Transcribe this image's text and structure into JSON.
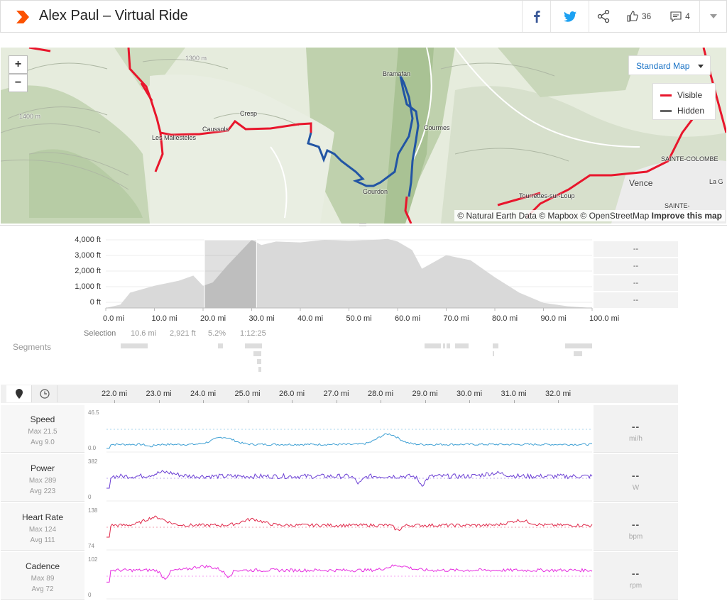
{
  "header": {
    "title": "Alex Paul – Virtual Ride",
    "kudos_count": "36",
    "comments_count": "4",
    "icons": [
      "strava-logo-icon",
      "facebook-icon",
      "twitter-icon",
      "share-icon",
      "thumbs-up-icon",
      "comment-icon",
      "chevron-down-icon"
    ]
  },
  "map": {
    "zoom_in": "+",
    "zoom_out": "−",
    "map_type": "Standard Map",
    "legend": [
      {
        "label": "Visible",
        "color": "#e8162c"
      },
      {
        "label": "Hidden",
        "color": "#666666"
      }
    ],
    "attribution": "© Natural Earth Data © Mapbox © OpenStreetMap",
    "improve": "Improve this map",
    "places": [
      "Bramafan",
      "Cresp",
      "Caussols",
      "Les Mallesteles",
      "Courmes",
      "Gourdon",
      "Tourrettes-sur-Loup",
      "Vence",
      "SAINTE-COLOMBE",
      "SAINTE-",
      "La G",
      "1300 m",
      "1400 m"
    ],
    "route_colors": {
      "visible": "#e8162c",
      "selected": "#2255a4"
    }
  },
  "elevation": {
    "y_ticks": [
      "4,000 ft",
      "3,000 ft",
      "2,000 ft",
      "1,000 ft",
      "0 ft"
    ],
    "x_ticks": [
      "0.0 mi",
      "10.0 mi",
      "20.0 mi",
      "30.0 mi",
      "40.0 mi",
      "50.0 mi",
      "60.0 mi",
      "70.0 mi",
      "80.0 mi",
      "90.0 mi",
      "100.0 mi"
    ],
    "side_values": [
      "--",
      "--",
      "--",
      "--"
    ],
    "selection": {
      "label": "Selection",
      "distance": "10.6 mi",
      "elev_gain": "2,921 ft",
      "grade": "5.2%",
      "time": "1:12:25"
    },
    "segments_label": "Segments"
  },
  "streams": {
    "x_ticks": [
      "22.0 mi",
      "23.0 mi",
      "24.0 mi",
      "25.0 mi",
      "26.0 mi",
      "27.0 mi",
      "28.0 mi",
      "29.0 mi",
      "30.0 mi",
      "31.0 mi",
      "32.0 mi"
    ],
    "rows": [
      {
        "name": "Speed",
        "max": "Max 21.5",
        "avg": "Avg 9.0",
        "ymax": "46.5",
        "ymin": "0.0",
        "value": "--",
        "unit": "mi/h",
        "color": "#3fa0d4"
      },
      {
        "name": "Power",
        "max": "Max 289",
        "avg": "Avg 223",
        "ymax": "382",
        "ymin": "0",
        "value": "--",
        "unit": "W",
        "color": "#6b3fd4"
      },
      {
        "name": "Heart Rate",
        "max": "Max 124",
        "avg": "Avg 111",
        "ymax": "138",
        "ymin": "74",
        "value": "--",
        "unit": "bpm",
        "color": "#e0294a"
      },
      {
        "name": "Cadence",
        "max": "Max 89",
        "avg": "Avg 72",
        "ymax": "102",
        "ymin": "0",
        "value": "--",
        "unit": "rpm",
        "color": "#e62ee0"
      }
    ]
  },
  "chart_data": {
    "type": "area",
    "xlabel": "",
    "ylabel": "",
    "x": [
      0,
      3,
      5,
      10,
      15,
      18,
      20,
      22,
      25,
      28,
      30,
      32,
      35,
      40,
      45,
      50,
      55,
      58,
      60,
      63,
      65,
      70,
      75,
      80,
      85,
      90,
      95,
      100
    ],
    "y": [
      0,
      200,
      900,
      1300,
      1600,
      1900,
      1300,
      1500,
      2500,
      3400,
      4000,
      3700,
      3900,
      3850,
      4000,
      3950,
      4000,
      4050,
      3900,
      3400,
      2300,
      3100,
      2800,
      1800,
      900,
      300,
      100,
      0
    ],
    "xlim": [
      0,
      100
    ],
    "ylim": [
      0,
      4000
    ]
  }
}
